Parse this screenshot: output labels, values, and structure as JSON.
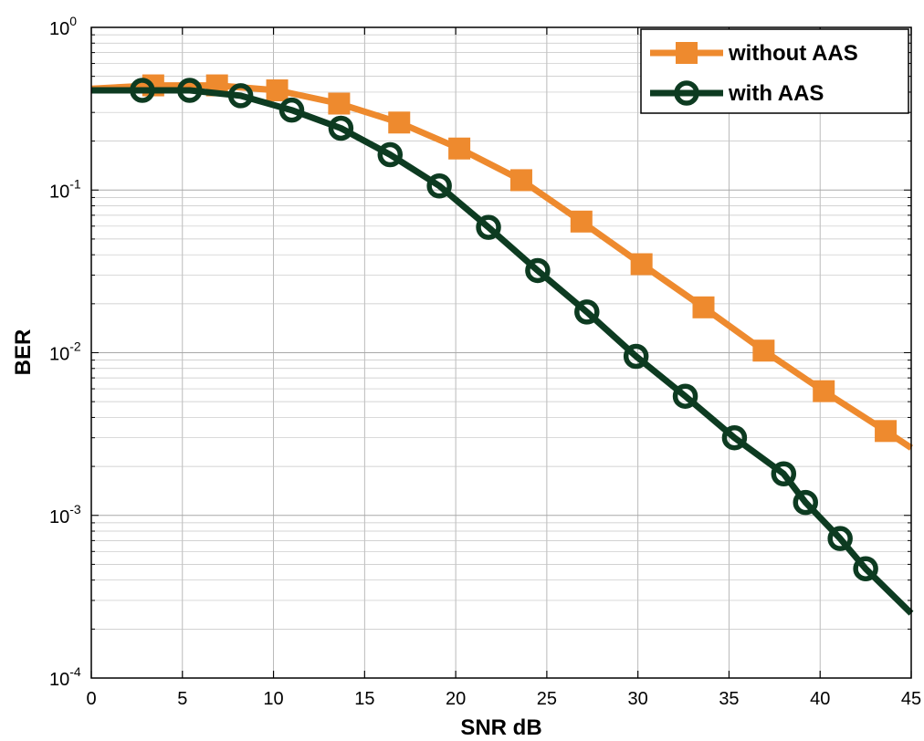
{
  "chart_data": {
    "type": "line",
    "title": "",
    "xlabel": "SNR dB",
    "ylabel": "BER",
    "xlim": [
      0,
      45
    ],
    "ylim": [
      0.0001,
      1
    ],
    "yscale": "log",
    "grid": true,
    "legend_position": "top-right",
    "x_ticks": [
      0,
      5,
      10,
      15,
      20,
      25,
      30,
      35,
      40,
      45
    ],
    "y_tick_labels": [
      {
        "base": "10",
        "exp": "0",
        "value": 1
      },
      {
        "base": "10",
        "exp": "-1",
        "value": 0.1
      },
      {
        "base": "10",
        "exp": "-2",
        "value": 0.01
      },
      {
        "base": "10",
        "exp": "-3",
        "value": 0.001
      },
      {
        "base": "10",
        "exp": "-4",
        "value": 0.0001
      }
    ],
    "series": [
      {
        "name": "without AAS",
        "color": "#EE8A2E",
        "marker": "square",
        "line": [
          [
            0,
            0.42
          ],
          [
            3.4,
            0.44
          ],
          [
            6.9,
            0.44
          ],
          [
            10.2,
            0.41
          ],
          [
            13.6,
            0.34
          ],
          [
            16.9,
            0.26
          ],
          [
            20.2,
            0.18
          ],
          [
            23.6,
            0.115
          ],
          [
            26.9,
            0.064
          ],
          [
            30.2,
            0.035
          ],
          [
            33.6,
            0.019
          ],
          [
            36.9,
            0.0103
          ],
          [
            40.2,
            0.0058
          ],
          [
            43.6,
            0.0033
          ],
          [
            45,
            0.0026
          ]
        ],
        "markers": [
          [
            3.4,
            0.44
          ],
          [
            6.9,
            0.44
          ],
          [
            10.2,
            0.41
          ],
          [
            13.6,
            0.34
          ],
          [
            16.9,
            0.26
          ],
          [
            20.2,
            0.18
          ],
          [
            23.6,
            0.115
          ],
          [
            26.9,
            0.064
          ],
          [
            30.2,
            0.035
          ],
          [
            33.6,
            0.019
          ],
          [
            36.9,
            0.0103
          ],
          [
            40.2,
            0.0058
          ],
          [
            43.6,
            0.0033
          ]
        ]
      },
      {
        "name": "with AAS",
        "color": "#0D3B21",
        "marker": "circle",
        "line": [
          [
            0,
            0.41
          ],
          [
            2.8,
            0.41
          ],
          [
            5.4,
            0.41
          ],
          [
            8.2,
            0.38
          ],
          [
            11,
            0.31
          ],
          [
            13.7,
            0.24
          ],
          [
            16.4,
            0.165
          ],
          [
            19.1,
            0.106
          ],
          [
            21.8,
            0.059
          ],
          [
            24.5,
            0.032
          ],
          [
            27.2,
            0.0178
          ],
          [
            29.9,
            0.0095
          ],
          [
            32.6,
            0.0054
          ],
          [
            35.3,
            0.003
          ],
          [
            38,
            0.0018
          ],
          [
            39.2,
            0.0012
          ],
          [
            41.1,
            0.00072
          ],
          [
            42.5,
            0.00047
          ],
          [
            45,
            0.00025
          ]
        ],
        "markers": [
          [
            2.8,
            0.41
          ],
          [
            5.4,
            0.41
          ],
          [
            8.2,
            0.38
          ],
          [
            11,
            0.31
          ],
          [
            13.7,
            0.24
          ],
          [
            16.4,
            0.165
          ],
          [
            19.1,
            0.106
          ],
          [
            21.8,
            0.059
          ],
          [
            24.5,
            0.032
          ],
          [
            27.2,
            0.0178
          ],
          [
            29.9,
            0.0095
          ],
          [
            32.6,
            0.0054
          ],
          [
            35.3,
            0.003
          ],
          [
            38,
            0.0018
          ],
          [
            39.2,
            0.0012
          ],
          [
            41.1,
            0.00072
          ],
          [
            42.5,
            0.00047
          ]
        ]
      }
    ]
  }
}
